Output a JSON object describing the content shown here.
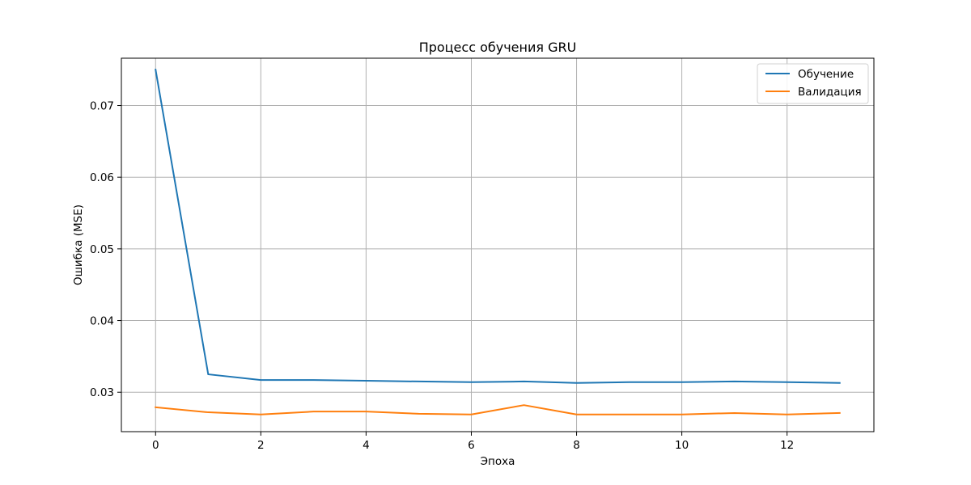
{
  "chart_data": {
    "type": "line",
    "title": "Процесс обучения GRU",
    "xlabel": "Эпоха",
    "ylabel": "Ошибка (MSE)",
    "x": [
      0,
      1,
      2,
      3,
      4,
      5,
      6,
      7,
      8,
      9,
      10,
      11,
      12,
      13
    ],
    "xlim": [
      -0.65,
      13.65
    ],
    "ylim": [
      0.0245,
      0.0766
    ],
    "xticks": [
      0,
      2,
      4,
      6,
      8,
      10,
      12
    ],
    "yticks": [
      0.03,
      0.04,
      0.05,
      0.06,
      0.07
    ],
    "xtick_labels": [
      "0",
      "2",
      "4",
      "6",
      "8",
      "10",
      "12"
    ],
    "ytick_labels": [
      "0.03",
      "0.04",
      "0.05",
      "0.06",
      "0.07"
    ],
    "grid": true,
    "legend_position": "top-right",
    "series": [
      {
        "name": "Обучение",
        "color": "#1f77b4",
        "values": [
          0.075,
          0.0325,
          0.0317,
          0.0317,
          0.0316,
          0.0315,
          0.0314,
          0.0315,
          0.0313,
          0.0314,
          0.0314,
          0.0315,
          0.0314,
          0.0313
        ]
      },
      {
        "name": "Валидация",
        "color": "#ff7f0e",
        "values": [
          0.0279,
          0.0272,
          0.0269,
          0.0273,
          0.0273,
          0.027,
          0.0269,
          0.0282,
          0.0269,
          0.0269,
          0.0269,
          0.0271,
          0.0269,
          0.0271
        ]
      }
    ]
  }
}
